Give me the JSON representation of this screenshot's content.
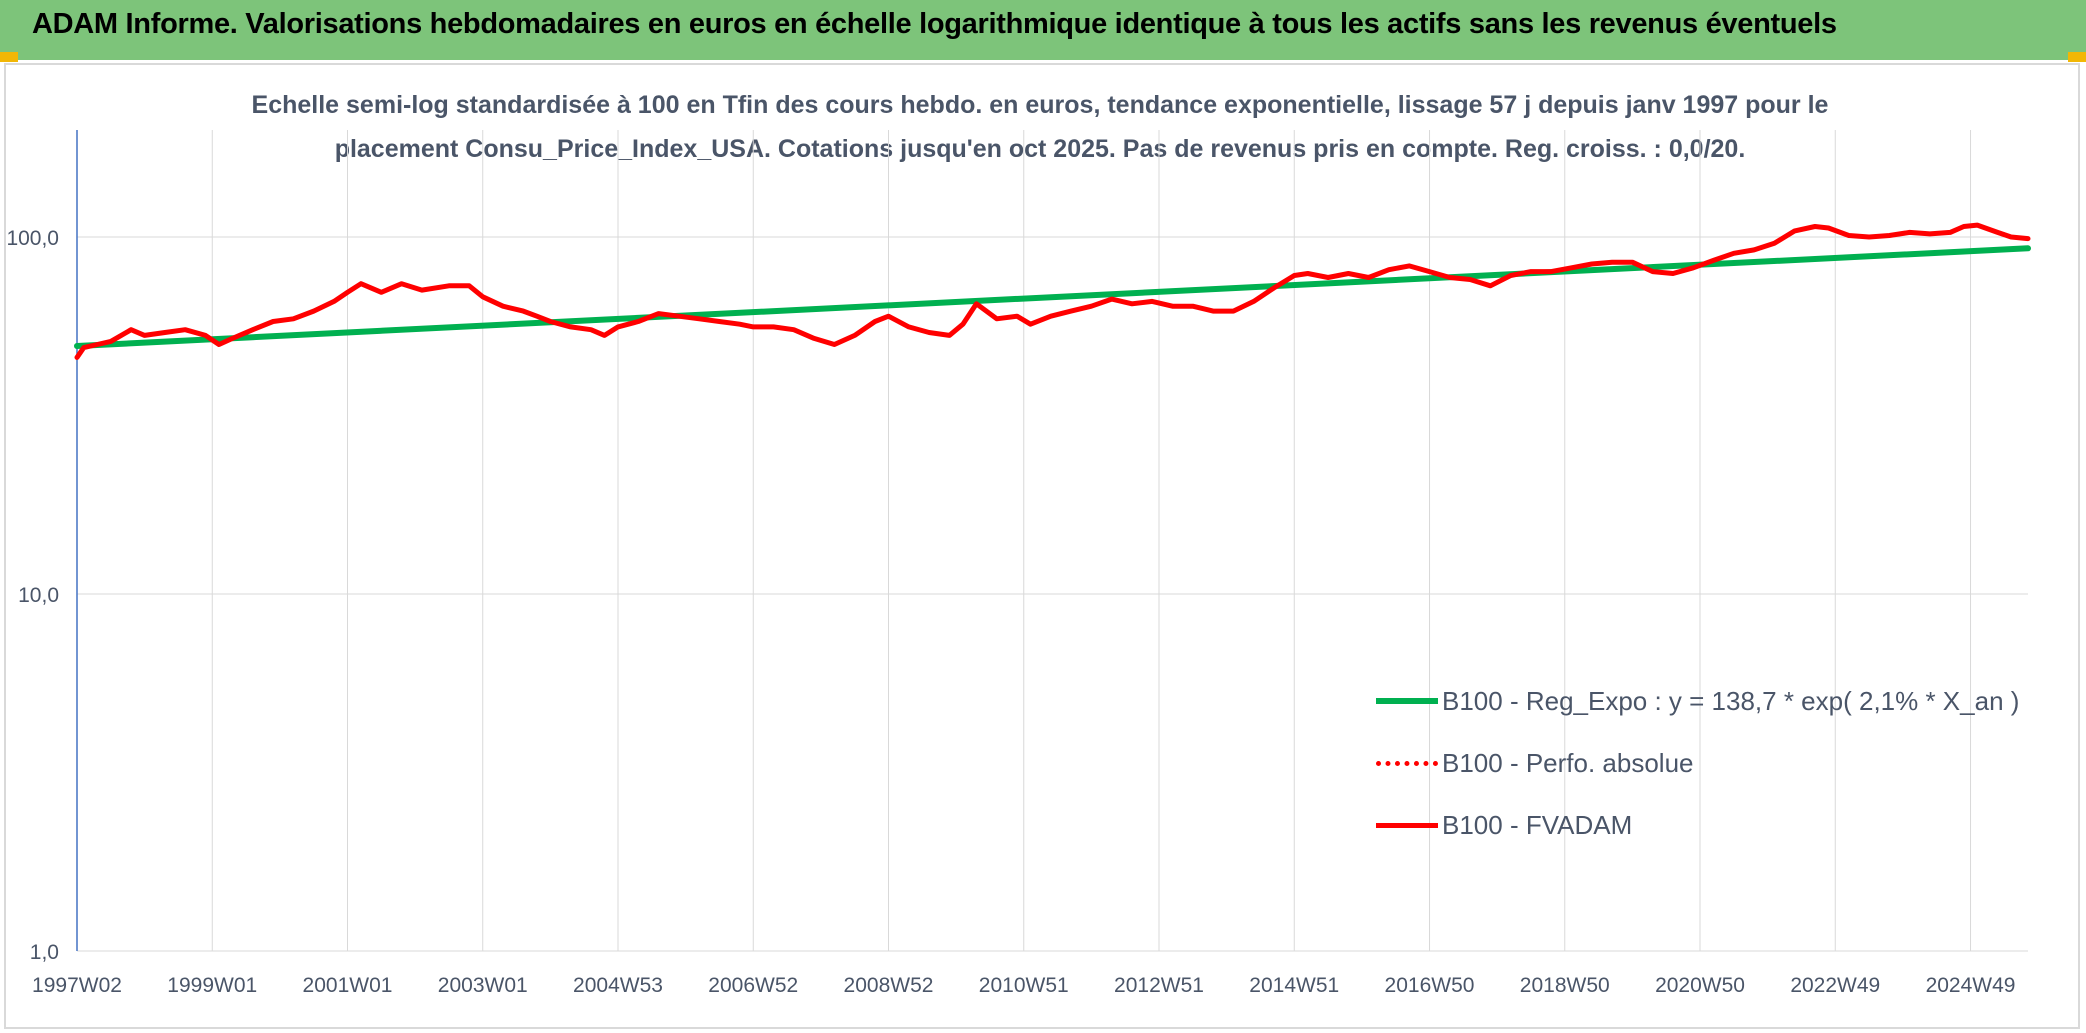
{
  "banner": {
    "title": "ADAM Informe. Valorisations hebdomadaires en euros en échelle logarithmique identique à tous les actifs sans les revenus éventuels",
    "color": "#7dc47a"
  },
  "chart_data": {
    "type": "line",
    "title_line1": "Echelle semi-log standardisée à 100 en Tfin des cours hebdo. en euros, tendance exponentielle, lissage 57 j depuis janv 1997 pour le",
    "title_line2": "placement Consu_Price_Index_USA. Cotations jusqu'en oct 2025. Pas de revenus pris en compte. Reg. croiss. : 0,0/20.",
    "y_scale": "log",
    "ylim": [
      1,
      200
    ],
    "y_ticks": [
      {
        "value": 1,
        "label": "1,0"
      },
      {
        "value": 10,
        "label": "10,0"
      },
      {
        "value": 100,
        "label": "100,0"
      }
    ],
    "x_range": [
      1997.0,
      2025.85
    ],
    "x_ticks": [
      {
        "value": 1997.0,
        "label": "1997W02"
      },
      {
        "value": 1999.0,
        "label": "1999W01"
      },
      {
        "value": 2001.0,
        "label": "2001W01"
      },
      {
        "value": 2003.0,
        "label": "2003W01"
      },
      {
        "value": 2005.0,
        "label": "2004W53"
      },
      {
        "value": 2007.0,
        "label": "2006W52"
      },
      {
        "value": 2009.0,
        "label": "2008W52"
      },
      {
        "value": 2011.0,
        "label": "2010W51"
      },
      {
        "value": 2013.0,
        "label": "2012W51"
      },
      {
        "value": 2015.0,
        "label": "2014W51"
      },
      {
        "value": 2017.0,
        "label": "2016W50"
      },
      {
        "value": 2019.0,
        "label": "2018W50"
      },
      {
        "value": 2021.0,
        "label": "2020W50"
      },
      {
        "value": 2023.0,
        "label": "2022W49"
      },
      {
        "value": 2025.0,
        "label": "2024W49"
      }
    ],
    "grid": true,
    "legend_position": "bottom-right",
    "series": [
      {
        "name": "B100 - Reg_Expo : y = 138,7 * exp( 2,1% *  X_an )",
        "color": "#00b050",
        "style": "solid",
        "x": [
          1997.0,
          2025.85
        ],
        "values": [
          49.5,
          93
        ]
      },
      {
        "name": "B100 - Perfo. absolue",
        "color": "#ff0000",
        "style": "dotted",
        "x": [],
        "values": []
      },
      {
        "name": "B100 - FVADAM",
        "color": "#ff0000",
        "style": "solid",
        "x": [
          1997.0,
          1997.1,
          1997.3,
          1997.5,
          1997.8,
          1998.0,
          1998.3,
          1998.6,
          1998.9,
          1999.1,
          1999.3,
          1999.6,
          1999.9,
          2000.2,
          2000.5,
          2000.8,
          2001.0,
          2001.2,
          2001.5,
          2001.8,
          2002.1,
          2002.5,
          2002.8,
          2003.0,
          2003.3,
          2003.6,
          2003.8,
          2004.0,
          2004.3,
          2004.6,
          2004.8,
          2005.0,
          2005.3,
          2005.6,
          2005.9,
          2006.2,
          2006.5,
          2006.8,
          2007.0,
          2007.3,
          2007.6,
          2007.9,
          2008.2,
          2008.5,
          2008.8,
          2009.0,
          2009.3,
          2009.6,
          2009.9,
          2010.1,
          2010.3,
          2010.6,
          2010.9,
          2011.1,
          2011.4,
          2011.7,
          2012.0,
          2012.3,
          2012.6,
          2012.9,
          2013.2,
          2013.5,
          2013.8,
          2014.1,
          2014.4,
          2014.7,
          2015.0,
          2015.2,
          2015.5,
          2015.8,
          2016.1,
          2016.4,
          2016.7,
          2017.0,
          2017.3,
          2017.6,
          2017.9,
          2018.2,
          2018.5,
          2018.8,
          2019.1,
          2019.4,
          2019.7,
          2020.0,
          2020.3,
          2020.6,
          2020.9,
          2021.2,
          2021.5,
          2021.8,
          2022.1,
          2022.4,
          2022.7,
          2022.9,
          2023.2,
          2023.5,
          2023.8,
          2024.1,
          2024.4,
          2024.7,
          2024.9,
          2025.1,
          2025.4,
          2025.6,
          2025.85
        ],
        "values": [
          46,
          49,
          50,
          51,
          55,
          53,
          54,
          55,
          53,
          50,
          52,
          55,
          58,
          59,
          62,
          66,
          70,
          74,
          70,
          74,
          71,
          73,
          73,
          68,
          64,
          62,
          60,
          58,
          56,
          55,
          53,
          56,
          58,
          61,
          60,
          59,
          58,
          57,
          56,
          56,
          55,
          52,
          50,
          53,
          58,
          60,
          56,
          54,
          53,
          57,
          65,
          59,
          60,
          57,
          60,
          62,
          64,
          67,
          65,
          66,
          64,
          64,
          62,
          62,
          66,
          72,
          78,
          79,
          77,
          79,
          77,
          81,
          83,
          80,
          77,
          76,
          73,
          78,
          80,
          80,
          82,
          84,
          85,
          85,
          80,
          79,
          82,
          86,
          90,
          92,
          96,
          104,
          107,
          106,
          101,
          100,
          101,
          103,
          102,
          103,
          107,
          108,
          103,
          100,
          99
        ]
      }
    ]
  }
}
